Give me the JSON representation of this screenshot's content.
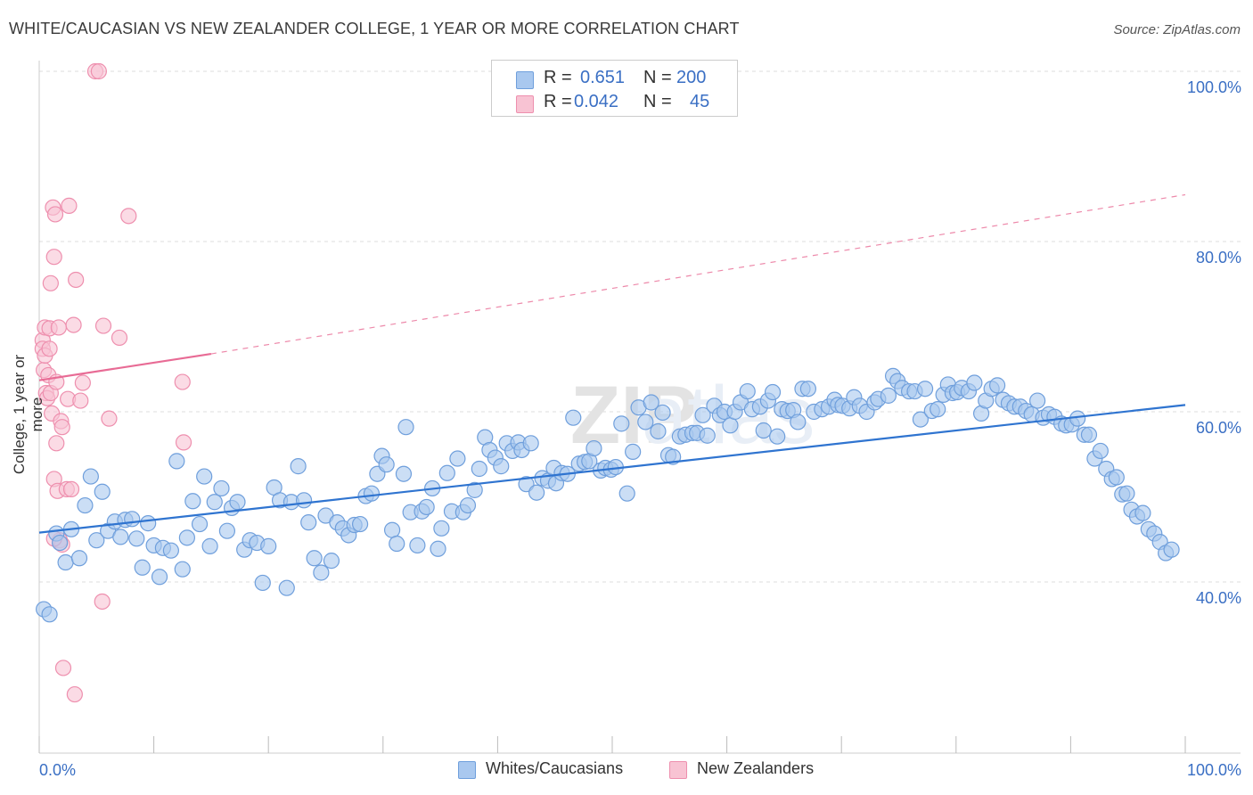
{
  "header": {
    "title": "WHITE/CAUCASIAN VS NEW ZEALANDER COLLEGE, 1 YEAR OR MORE CORRELATION CHART",
    "source": "Source: ZipAtlas.com"
  },
  "legend": {
    "rows": [
      {
        "r_label": "R =",
        "r_value": "0.651",
        "n_label": "N =",
        "n_value": "200",
        "color": "#a9c8ef"
      },
      {
        "r_label": "R =",
        "r_value": "0.042",
        "n_label": "N =",
        "n_value": "45",
        "color": "#f5b8cc"
      }
    ]
  },
  "bottom_legend": [
    {
      "label": "Whites/Caucasians",
      "color": "#a9c8ef"
    },
    {
      "label": "New Zealanders",
      "color": "#f5b8cc"
    }
  ],
  "colors": {
    "blue_fill": "#a9c8ef",
    "blue_stroke": "#6f9fdc",
    "blue_line": "#2f74d0",
    "pink_fill": "#f8c3d3",
    "pink_stroke": "#ee8fae",
    "pink_line": "#e86b95",
    "tick_text": "#3a6fc4",
    "grid": "#dddddd"
  },
  "chart_data": {
    "type": "scatter",
    "title": "WHITE/CAUCASIAN VS NEW ZEALANDER COLLEGE, 1 YEAR OR MORE CORRELATION CHART",
    "xlabel": "",
    "ylabel": "College, 1 year or more",
    "xlim": [
      0,
      100
    ],
    "ylim": [
      20,
      102
    ],
    "x_tick_labels": [
      "0.0%",
      "100.0%"
    ],
    "y_ticks": [
      40,
      60,
      80,
      100
    ],
    "y_tick_labels": [
      "40.0%",
      "60.0%",
      "80.0%",
      "100.0%"
    ],
    "grid": true,
    "legend_position": "top-center",
    "series": [
      {
        "name": "Whites/Caucasians",
        "r": 0.651,
        "n": 200,
        "trend": {
          "x": [
            0,
            100
          ],
          "y": [
            45.8,
            60.8
          ],
          "style": "solid"
        },
        "points": [
          [
            0.4,
            36.8
          ],
          [
            0.9,
            36.2
          ],
          [
            1.5,
            45.7
          ],
          [
            1.8,
            44.6
          ],
          [
            2.3,
            42.3
          ],
          [
            2.8,
            46.2
          ],
          [
            3.5,
            42.8
          ],
          [
            4,
            49
          ],
          [
            4.5,
            52.4
          ],
          [
            5,
            44.9
          ],
          [
            5.5,
            50.6
          ],
          [
            6,
            46
          ],
          [
            6.6,
            47.1
          ],
          [
            7.1,
            45.3
          ],
          [
            7.5,
            47.3
          ],
          [
            8.1,
            47.4
          ],
          [
            8.5,
            45.1
          ],
          [
            9,
            41.7
          ],
          [
            9.5,
            46.9
          ],
          [
            10,
            44.3
          ],
          [
            10.5,
            40.6
          ],
          [
            10.8,
            44
          ],
          [
            11.5,
            43.7
          ],
          [
            12,
            54.2
          ],
          [
            12.5,
            41.5
          ],
          [
            12.9,
            45.2
          ],
          [
            13.4,
            49.5
          ],
          [
            14,
            46.8
          ],
          [
            14.4,
            52.4
          ],
          [
            14.9,
            44.2
          ],
          [
            15.3,
            49.4
          ],
          [
            15.9,
            51
          ],
          [
            16.4,
            46
          ],
          [
            16.8,
            48.7
          ],
          [
            17.3,
            49.4
          ],
          [
            17.9,
            43.8
          ],
          [
            18.4,
            44.9
          ],
          [
            19,
            44.6
          ],
          [
            19.5,
            39.9
          ],
          [
            20,
            44.2
          ],
          [
            20.5,
            51.1
          ],
          [
            21,
            49.6
          ],
          [
            21.6,
            39.3
          ],
          [
            22,
            49.4
          ],
          [
            22.6,
            53.6
          ],
          [
            23.1,
            49.6
          ],
          [
            23.5,
            47
          ],
          [
            24,
            42.8
          ],
          [
            24.6,
            41.1
          ],
          [
            25,
            47.8
          ],
          [
            25.5,
            42.5
          ],
          [
            26,
            47
          ],
          [
            26.5,
            46.3
          ],
          [
            27,
            45.5
          ],
          [
            27.5,
            46.7
          ],
          [
            28,
            46.8
          ],
          [
            28.5,
            50.1
          ],
          [
            29,
            50.4
          ],
          [
            29.5,
            52.7
          ],
          [
            29.9,
            54.8
          ],
          [
            30.3,
            53.8
          ],
          [
            30.8,
            46.1
          ],
          [
            31.2,
            44.5
          ],
          [
            31.8,
            52.7
          ],
          [
            32,
            58.2
          ],
          [
            32.4,
            48.2
          ],
          [
            33,
            44.3
          ],
          [
            33.4,
            48.3
          ],
          [
            33.8,
            48.8
          ],
          [
            34.3,
            51
          ],
          [
            34.8,
            43.9
          ],
          [
            35.1,
            46.3
          ],
          [
            35.6,
            52.8
          ],
          [
            36,
            48.3
          ],
          [
            36.5,
            54.5
          ],
          [
            37,
            48.2
          ],
          [
            37.4,
            49
          ],
          [
            38,
            50.8
          ],
          [
            38.4,
            53.3
          ],
          [
            38.9,
            57
          ],
          [
            39.3,
            55.5
          ],
          [
            39.8,
            54.6
          ],
          [
            40.3,
            53.6
          ],
          [
            40.8,
            56.3
          ],
          [
            41.3,
            55.4
          ],
          [
            41.8,
            56.4
          ],
          [
            42.1,
            55.5
          ],
          [
            42.5,
            51.5
          ],
          [
            42.9,
            56.3
          ],
          [
            43.4,
            50.5
          ],
          [
            43.9,
            52.2
          ],
          [
            44.4,
            51.9
          ],
          [
            44.9,
            53.4
          ],
          [
            45.1,
            51.6
          ],
          [
            45.6,
            52.8
          ],
          [
            46.1,
            52.7
          ],
          [
            46.6,
            59.3
          ],
          [
            47.1,
            53.9
          ],
          [
            47.6,
            54.1
          ],
          [
            48,
            54.2
          ],
          [
            48.4,
            55.7
          ],
          [
            49,
            53.1
          ],
          [
            49.4,
            53.4
          ],
          [
            49.9,
            53.2
          ],
          [
            50.3,
            53.5
          ],
          [
            50.8,
            58.6
          ],
          [
            51.3,
            50.4
          ],
          [
            51.8,
            55.3
          ],
          [
            52.3,
            60.5
          ],
          [
            52.9,
            58.8
          ],
          [
            53.4,
            61.1
          ],
          [
            54,
            57.7
          ],
          [
            54.4,
            59.9
          ],
          [
            54.9,
            54.9
          ],
          [
            55.3,
            54.7
          ],
          [
            55.9,
            57.1
          ],
          [
            56.4,
            57.3
          ],
          [
            57,
            57.5
          ],
          [
            57.4,
            57.5
          ],
          [
            57.9,
            59.6
          ],
          [
            58.3,
            57.2
          ],
          [
            58.9,
            60.7
          ],
          [
            59.4,
            59.6
          ],
          [
            59.8,
            60
          ],
          [
            60.3,
            58.4
          ],
          [
            60.7,
            60
          ],
          [
            61.2,
            61.1
          ],
          [
            61.8,
            62.4
          ],
          [
            62.2,
            60.3
          ],
          [
            62.9,
            60.6
          ],
          [
            63.2,
            57.8
          ],
          [
            63.6,
            61.3
          ],
          [
            64,
            62.3
          ],
          [
            64.4,
            57.1
          ],
          [
            64.8,
            60.3
          ],
          [
            65.3,
            60.1
          ],
          [
            65.8,
            60.2
          ],
          [
            66.2,
            58.8
          ],
          [
            66.6,
            62.7
          ],
          [
            67.1,
            62.7
          ],
          [
            67.6,
            60
          ],
          [
            68.3,
            60.3
          ],
          [
            68.9,
            60.6
          ],
          [
            69.4,
            61.4
          ],
          [
            69.7,
            60.8
          ],
          [
            70.1,
            60.7
          ],
          [
            70.7,
            60.4
          ],
          [
            71.1,
            61.7
          ],
          [
            71.6,
            60.7
          ],
          [
            72.2,
            60
          ],
          [
            72.9,
            61.1
          ],
          [
            73.2,
            61.5
          ],
          [
            74.1,
            61.9
          ],
          [
            74.5,
            64.2
          ],
          [
            74.9,
            63.6
          ],
          [
            75.3,
            62.8
          ],
          [
            75.9,
            62.4
          ],
          [
            76.4,
            62.4
          ],
          [
            76.9,
            59.1
          ],
          [
            77.3,
            62.7
          ],
          [
            77.9,
            60.1
          ],
          [
            78.4,
            60.3
          ],
          [
            78.9,
            62
          ],
          [
            79.3,
            63.2
          ],
          [
            79.7,
            62.2
          ],
          [
            80.1,
            62.3
          ],
          [
            80.5,
            62.8
          ],
          [
            81.1,
            62.4
          ],
          [
            81.6,
            63.4
          ],
          [
            82.2,
            59.8
          ],
          [
            82.6,
            61.3
          ],
          [
            83.1,
            62.7
          ],
          [
            83.6,
            63.1
          ],
          [
            84.1,
            61.4
          ],
          [
            84.6,
            61
          ],
          [
            85.1,
            60.6
          ],
          [
            85.6,
            60.6
          ],
          [
            86.1,
            60.1
          ],
          [
            86.6,
            59.7
          ],
          [
            87.1,
            61.3
          ],
          [
            87.6,
            59.3
          ],
          [
            88.1,
            59.7
          ],
          [
            88.6,
            59.4
          ],
          [
            89.2,
            58.6
          ],
          [
            89.6,
            58.4
          ],
          [
            90.1,
            58.5
          ],
          [
            90.6,
            59.2
          ],
          [
            91.2,
            57.3
          ],
          [
            91.6,
            57.3
          ],
          [
            92.1,
            54.5
          ],
          [
            92.6,
            55.4
          ],
          [
            93.1,
            53.3
          ],
          [
            93.6,
            52.1
          ],
          [
            94,
            52.3
          ],
          [
            94.5,
            50.3
          ],
          [
            94.9,
            50.4
          ],
          [
            95.3,
            48.5
          ],
          [
            95.8,
            47.7
          ],
          [
            96.3,
            48.1
          ],
          [
            96.8,
            46.2
          ],
          [
            97.3,
            45.7
          ],
          [
            97.8,
            44.7
          ],
          [
            98.3,
            43.4
          ],
          [
            98.8,
            43.8
          ]
        ]
      },
      {
        "name": "New Zealanders",
        "r": 0.042,
        "n": 45,
        "trend_solid": {
          "x": [
            0,
            15
          ],
          "y": [
            63.7,
            66.8
          ]
        },
        "trend_dashed": {
          "x": [
            15,
            100
          ],
          "y": [
            66.8,
            85.5
          ]
        },
        "points": [
          [
            0.3,
            68.4
          ],
          [
            0.3,
            67.4
          ],
          [
            0.4,
            64.9
          ],
          [
            0.5,
            69.9
          ],
          [
            0.5,
            66.6
          ],
          [
            0.6,
            62.2
          ],
          [
            0.7,
            61.6
          ],
          [
            0.8,
            64.3
          ],
          [
            0.9,
            69.8
          ],
          [
            0.9,
            67.4
          ],
          [
            1,
            75.1
          ],
          [
            1,
            62.2
          ],
          [
            1.1,
            59.8
          ],
          [
            1.2,
            84
          ],
          [
            1.3,
            78.2
          ],
          [
            1.3,
            52.1
          ],
          [
            1.4,
            83.2
          ],
          [
            1.5,
            63.5
          ],
          [
            1.5,
            56.3
          ],
          [
            1.6,
            50.7
          ],
          [
            1.7,
            69.9
          ],
          [
            1.8,
            44.9
          ],
          [
            1.9,
            58.9
          ],
          [
            2,
            44.4
          ],
          [
            2,
            58.2
          ],
          [
            2.1,
            29.9
          ],
          [
            2.4,
            50.9
          ],
          [
            2.5,
            61.5
          ],
          [
            2.6,
            84.2
          ],
          [
            2.8,
            50.9
          ],
          [
            3,
            70.2
          ],
          [
            3.1,
            26.8
          ],
          [
            3.2,
            75.5
          ],
          [
            3.6,
            61.3
          ],
          [
            3.8,
            63.4
          ],
          [
            4.9,
            100
          ],
          [
            5.2,
            100
          ],
          [
            5.5,
            37.7
          ],
          [
            5.6,
            70.1
          ],
          [
            6.1,
            59.2
          ],
          [
            7,
            68.7
          ],
          [
            7.8,
            83
          ],
          [
            12.5,
            63.5
          ],
          [
            12.6,
            56.4
          ],
          [
            1.3,
            45.1
          ]
        ]
      }
    ]
  }
}
